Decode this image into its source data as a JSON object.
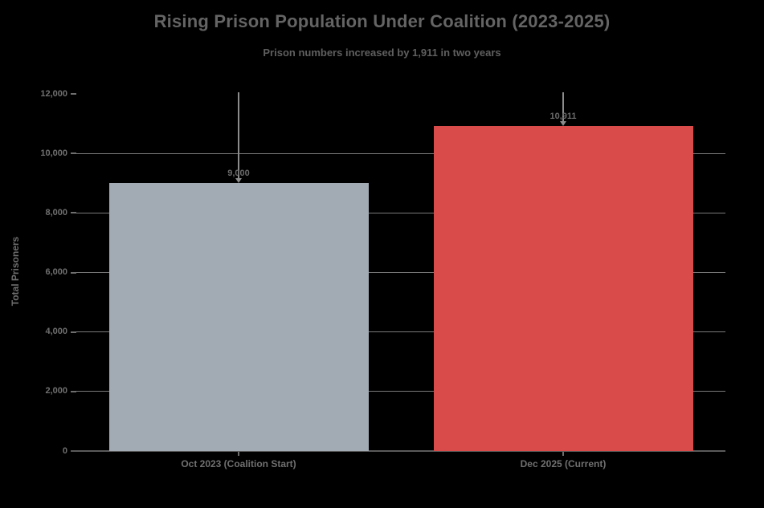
{
  "chart_data": {
    "type": "bar",
    "title": "Rising Prison Population Under Coalition (2023-2025)",
    "subtitle": "Prison numbers increased by 1,911 in two years",
    "xlabel": "",
    "ylabel": "Total Prisoners",
    "categories": [
      "Oct 2023 (Coalition Start)",
      "Dec 2025 (Current)"
    ],
    "values": [
      9000,
      10911
    ],
    "bar_labels": [
      "9,000",
      "10,911"
    ],
    "bar_colors": [
      "#a2aab4",
      "#d94a4b"
    ],
    "ylim": [
      0,
      12000
    ],
    "yticks": [
      {
        "value": 0,
        "label": "0",
        "gridline": false
      },
      {
        "value": 2000,
        "label": "2,000",
        "gridline": true
      },
      {
        "value": 4000,
        "label": "4,000",
        "gridline": true
      },
      {
        "value": 6000,
        "label": "6,000",
        "gridline": true
      },
      {
        "value": 8000,
        "label": "8,000",
        "gridline": true
      },
      {
        "value": 10000,
        "label": "10,000",
        "gridline": true
      },
      {
        "value": 12000,
        "label": "12,000",
        "gridline": false
      }
    ],
    "grid": "horizontal",
    "legend_position": "none",
    "annotations": [
      {
        "target_bar": 0,
        "style": "vertical-arrow-down-to-bar-top",
        "label": "9,000"
      },
      {
        "target_bar": 1,
        "style": "vertical-arrow-down-to-bar-top",
        "label": "10,911"
      }
    ],
    "colors": {
      "background": "#000000",
      "title_text": "#646464",
      "subtitle_text": "#5f5f5f",
      "axis_text": "#6e6e6e",
      "tick_label_text": "#707070",
      "value_label_text": "#6a6a6a",
      "gridline": "#7a7a7a",
      "axis_line": "#5a5a5a",
      "tick_mark": "#6e6e6e",
      "annotation_line": "#8c8c8c"
    }
  }
}
